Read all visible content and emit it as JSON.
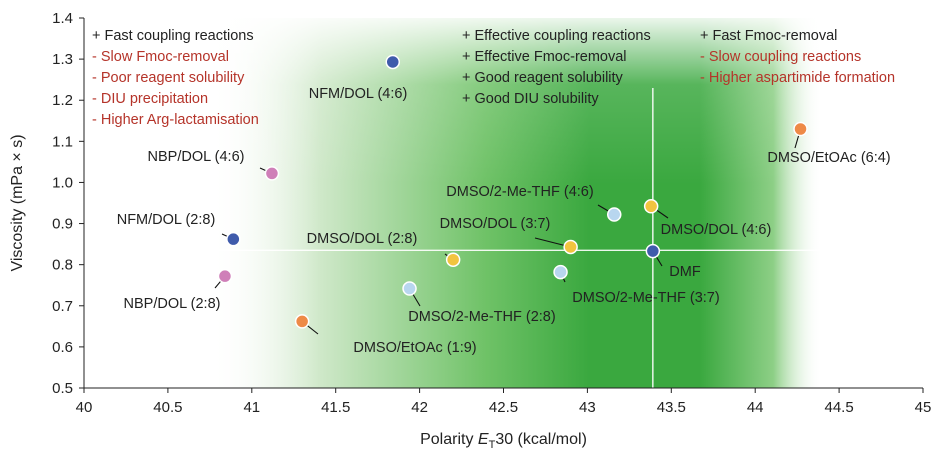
{
  "chart_data": {
    "type": "scatter",
    "xlabel": "Polarity E_T30 (kcal/mol)",
    "xlabel_main": "Polarity ",
    "xlabel_italic": "E",
    "xlabel_sub": "T",
    "xlabel_rest": "30 (kcal/mol)",
    "ylabel": "Viscosity (mPa × s)",
    "xlim": [
      40,
      45
    ],
    "ylim": [
      0.5,
      1.4
    ],
    "xticks": [
      "40",
      "40.5",
      "41",
      "41.5",
      "42",
      "42.5",
      "43",
      "43.5",
      "44",
      "44.5",
      "45"
    ],
    "yticks": [
      "0.5",
      "0.6",
      "0.7",
      "0.8",
      "0.9",
      "1.0",
      "1.1",
      "1.2",
      "1.3",
      "1.4"
    ],
    "reference_lines": {
      "x": 43.39,
      "y": 0.835
    },
    "background": "green gradient band, most intense around x 42.4–43.4",
    "colors": {
      "blue": "#3f5bab",
      "pink": "#cf7fb8",
      "orange": "#ee8a47",
      "yellow": "#f2c43f",
      "lightblue": "#b8d6ef",
      "green_dark": "#34a63a",
      "note_red": "#b5342a",
      "note_black": "#222222"
    },
    "points": [
      {
        "label": "NFM/DOL (4:6)",
        "x": 41.84,
        "y": 1.293,
        "color": "blue"
      },
      {
        "label": "NBP/DOL (4:6)",
        "x": 41.12,
        "y": 1.022,
        "color": "pink"
      },
      {
        "label": "NFM/DOL (2:8)",
        "x": 40.89,
        "y": 0.862,
        "color": "blue"
      },
      {
        "label": "NBP/DOL (2:8)",
        "x": 40.84,
        "y": 0.772,
        "color": "pink"
      },
      {
        "label": "DMSO/EtOAc (1:9)",
        "x": 41.3,
        "y": 0.662,
        "color": "orange"
      },
      {
        "label": "DMSO/2-Me-THF (2:8)",
        "x": 41.94,
        "y": 0.742,
        "color": "lightblue"
      },
      {
        "label": "DMSO/DOL (2:8)",
        "x": 42.2,
        "y": 0.812,
        "color": "yellow"
      },
      {
        "label": "DMSO/DOL (3:7)",
        "x": 42.9,
        "y": 0.843,
        "color": "yellow"
      },
      {
        "label": "DMSO/2-Me-THF (3:7)",
        "x": 42.84,
        "y": 0.782,
        "color": "lightblue"
      },
      {
        "label": "DMSO/2-Me-THF (4:6)",
        "x": 43.16,
        "y": 0.922,
        "color": "lightblue"
      },
      {
        "label": "DMSO/DOL (4:6)",
        "x": 43.38,
        "y": 0.942,
        "color": "yellow"
      },
      {
        "label": "DMF",
        "x": 43.39,
        "y": 0.833,
        "color": "blue"
      },
      {
        "label": "DMSO/EtOAc (6:4)",
        "x": 44.27,
        "y": 1.13,
        "color": "orange"
      }
    ],
    "annotations": [
      {
        "lines": [
          {
            "text": "+ Fast coupling reactions",
            "tone": "black"
          },
          {
            "text": "- Slow Fmoc-removal",
            "tone": "red"
          },
          {
            "text": "- Poor reagent solubility",
            "tone": "red"
          },
          {
            "text": "- DIU precipitation",
            "tone": "red"
          },
          {
            "text": "- Higher Arg-lactamisation",
            "tone": "red"
          }
        ]
      },
      {
        "lines": [
          {
            "text": "+ Effective coupling reactions",
            "tone": "black"
          },
          {
            "text": "+ Effective Fmoc-removal",
            "tone": "black"
          },
          {
            "text": "+ Good reagent solubility",
            "tone": "black"
          },
          {
            "text": "+ Good DIU solubility",
            "tone": "black"
          }
        ]
      },
      {
        "lines": [
          {
            "text": "+ Fast Fmoc-removal",
            "tone": "black"
          },
          {
            "text": "- Slow coupling reactions",
            "tone": "red"
          },
          {
            "text": "- Higher aspartimide formation",
            "tone": "red"
          }
        ]
      }
    ]
  }
}
